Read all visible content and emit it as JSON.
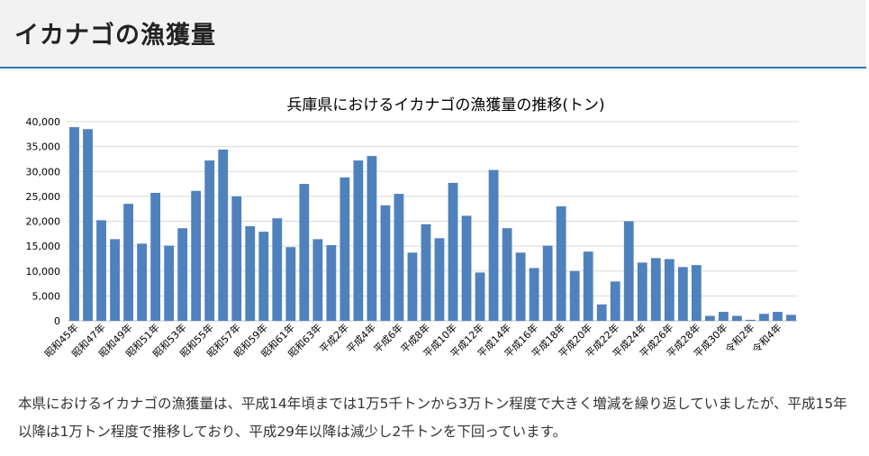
{
  "header": {
    "title": "イカナゴの漁獲量"
  },
  "chart_data": {
    "type": "bar",
    "title": "兵庫県におけるイカナゴの漁獲量の推移(トン)",
    "xlabel": "",
    "ylabel": "",
    "ylim": [
      0,
      40000
    ],
    "yticks": [
      "0",
      "5,000",
      "10,000",
      "15,000",
      "20,000",
      "25,000",
      "30,000",
      "35,000",
      "40,000"
    ],
    "grid": true,
    "color": "#4f81bd",
    "categories": [
      "昭和45年",
      "昭和46年",
      "昭和47年",
      "昭和48年",
      "昭和49年",
      "昭和50年",
      "昭和51年",
      "昭和52年",
      "昭和53年",
      "昭和54年",
      "昭和55年",
      "昭和56年",
      "昭和57年",
      "昭和58年",
      "昭和59年",
      "昭和60年",
      "昭和61年",
      "昭和62年",
      "昭和63年",
      "平成元年",
      "平成2年",
      "平成3年",
      "平成4年",
      "平成5年",
      "平成6年",
      "平成7年",
      "平成8年",
      "平成9年",
      "平成10年",
      "平成11年",
      "平成12年",
      "平成13年",
      "平成14年",
      "平成15年",
      "平成16年",
      "平成17年",
      "平成18年",
      "平成19年",
      "平成20年",
      "平成21年",
      "平成22年",
      "平成23年",
      "平成24年",
      "平成25年",
      "平成26年",
      "平成27年",
      "平成28年",
      "平成29年",
      "平成30年",
      "平成31年",
      "令和2年",
      "令和3年",
      "令和4年",
      "令和5年"
    ],
    "visible_labels": [
      "昭和45年",
      "昭和47年",
      "昭和49年",
      "昭和51年",
      "昭和53年",
      "昭和55年",
      "昭和57年",
      "昭和59年",
      "昭和61年",
      "昭和63年",
      "平成2年",
      "平成4年",
      "平成6年",
      "平成8年",
      "平成10年",
      "平成12年",
      "平成14年",
      "平成16年",
      "平成18年",
      "平成20年",
      "平成22年",
      "平成24年",
      "平成26年",
      "平成28年",
      "平成30年",
      "令和2年",
      "令和4年"
    ],
    "values": [
      38900,
      38500,
      20200,
      16400,
      23500,
      15500,
      25700,
      15100,
      18600,
      26100,
      32200,
      34400,
      25000,
      19000,
      17900,
      20600,
      14800,
      27500,
      16400,
      15200,
      28800,
      32200,
      33100,
      23200,
      25500,
      13700,
      19400,
      16600,
      27700,
      21100,
      9700,
      30300,
      18600,
      13700,
      10600,
      15100,
      23000,
      10000,
      13900,
      3300,
      7900,
      20000,
      11700,
      12600,
      12400,
      10800,
      11200,
      1000,
      1800,
      1000,
      200,
      1400,
      1800,
      1200
    ]
  },
  "description": "本県におけるイカナゴの漁獲量は、平成14年頃までは1万5千トンから3万トン程度で大きく増減を繰り返していましたが、平成15年以降は1万トン程度で推移しており、平成29年以降は減少し2千トンを下回っています。"
}
